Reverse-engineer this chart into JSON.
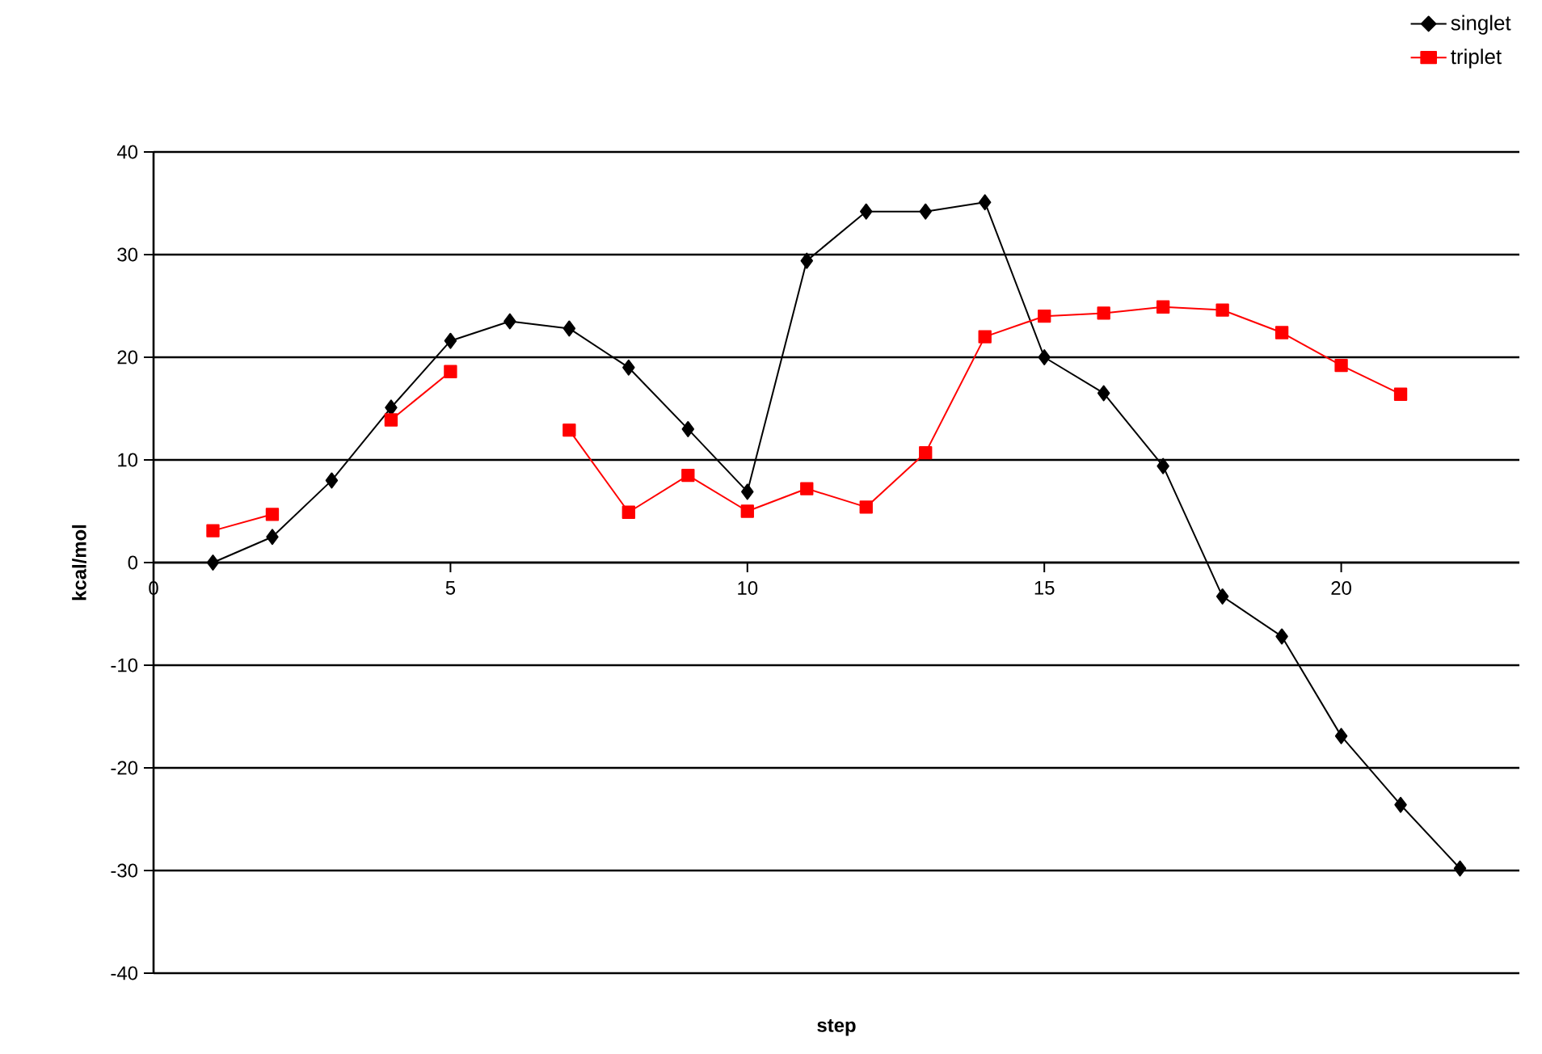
{
  "chart_data": {
    "type": "line",
    "xlabel": "step",
    "ylabel": "kcal/mol",
    "x": [
      1,
      2,
      3,
      4,
      5,
      6,
      7,
      8,
      9,
      10,
      11,
      12,
      13,
      14,
      15,
      16,
      17,
      18,
      19,
      20,
      21,
      22
    ],
    "series": [
      {
        "name": "singlet",
        "color": "#000000",
        "marker": "diamond",
        "values": [
          0,
          2.5,
          8,
          15.1,
          21.6,
          23.5,
          22.8,
          19,
          13,
          6.9,
          29.4,
          34.2,
          34.2,
          35.1,
          20,
          16.5,
          9.4,
          -3.3,
          -7.2,
          -16.9,
          -23.6,
          -29.8
        ]
      },
      {
        "name": "triplet",
        "color": "#ff0000",
        "marker": "square",
        "values": [
          3.1,
          4.7,
          null,
          13.9,
          18.6,
          null,
          12.9,
          4.9,
          8.5,
          5,
          7.2,
          5.4,
          10.7,
          22,
          24,
          24.3,
          24.9,
          24.6,
          22.4,
          19.2,
          16.4,
          null
        ]
      }
    ],
    "xlim": [
      0,
      23
    ],
    "xticks": [
      0,
      5,
      10,
      15,
      20
    ],
    "ylim": [
      -40,
      40
    ],
    "yticks": [
      -40,
      -30,
      -20,
      -10,
      0,
      10,
      20,
      30,
      40
    ],
    "grid": "y",
    "legend": "top right",
    "line_style": "solid"
  }
}
